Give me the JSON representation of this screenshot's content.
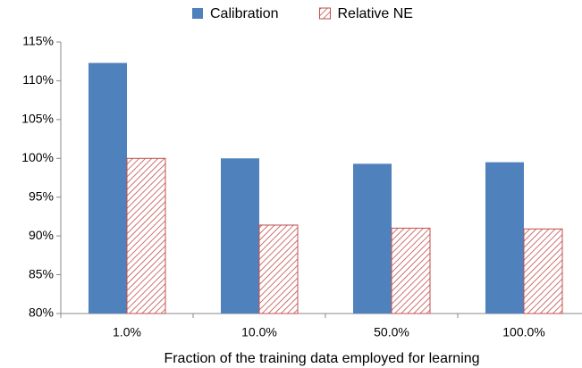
{
  "chart_data": {
    "type": "bar",
    "x_label": "Fraction of the training data employed for learning",
    "categories": [
      "1.0%",
      "10.0%",
      "50.0%",
      "100.0%"
    ],
    "series": [
      {
        "name": "Calibration",
        "color": "#4f81bd",
        "values": [
          112.3,
          100.0,
          99.3,
          99.5
        ]
      },
      {
        "name": "Relative NE",
        "color": "#c0504d",
        "hatch": true,
        "values": [
          100.0,
          91.4,
          91.0,
          90.9
        ]
      }
    ],
    "ylim": [
      80,
      115
    ],
    "yticks": [
      {
        "value": 80,
        "label": "80%"
      },
      {
        "value": 85,
        "label": "85%"
      },
      {
        "value": 90,
        "label": "90%"
      },
      {
        "value": 95,
        "label": "95%"
      },
      {
        "value": 100,
        "label": "100%"
      },
      {
        "value": 105,
        "label": "105%"
      },
      {
        "value": 110,
        "label": "110%"
      },
      {
        "value": 115,
        "label": "115%"
      }
    ],
    "grid": false
  }
}
